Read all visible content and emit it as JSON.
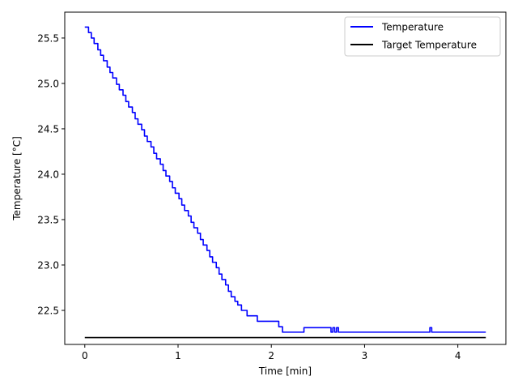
{
  "chart_data": {
    "type": "line",
    "title": "",
    "xlabel": "Time [min]",
    "ylabel": "Temperature [°C]",
    "xlim": [
      -0.215,
      4.515
    ],
    "ylim": [
      22.125,
      25.785
    ],
    "xticks": [
      0,
      1,
      2,
      3,
      4
    ],
    "xtick_labels": [
      "0",
      "1",
      "2",
      "3",
      "4"
    ],
    "yticks": [
      22.5,
      23.0,
      23.5,
      24.0,
      24.5,
      25.0,
      25.5
    ],
    "ytick_labels": [
      "22.5",
      "23.0",
      "23.5",
      "24.0",
      "24.5",
      "25.0",
      "25.5"
    ],
    "grid": false,
    "legend_position": "top-right",
    "series": [
      {
        "name": "Temperature",
        "color": "#0000ff",
        "step": true,
        "x": [
          0.0,
          0.04,
          0.07,
          0.1,
          0.14,
          0.17,
          0.2,
          0.24,
          0.27,
          0.3,
          0.34,
          0.37,
          0.41,
          0.44,
          0.47,
          0.51,
          0.54,
          0.57,
          0.61,
          0.64,
          0.67,
          0.71,
          0.74,
          0.77,
          0.81,
          0.84,
          0.87,
          0.91,
          0.94,
          0.97,
          1.01,
          1.04,
          1.07,
          1.11,
          1.14,
          1.17,
          1.21,
          1.24,
          1.27,
          1.31,
          1.34,
          1.37,
          1.41,
          1.44,
          1.47,
          1.51,
          1.54,
          1.57,
          1.61,
          1.64,
          1.68,
          1.74,
          1.78,
          1.85,
          1.95,
          2.08,
          2.1,
          2.12,
          2.35,
          2.64,
          2.66,
          2.68,
          2.7,
          2.72,
          2.74,
          2.75,
          3.7,
          3.72,
          3.73,
          4.3
        ],
        "y": [
          25.62,
          25.56,
          25.5,
          25.44,
          25.37,
          25.31,
          25.25,
          25.18,
          25.12,
          25.06,
          24.99,
          24.93,
          24.87,
          24.8,
          24.74,
          24.68,
          24.61,
          24.55,
          24.49,
          24.42,
          24.36,
          24.3,
          24.23,
          24.17,
          24.11,
          24.04,
          23.98,
          23.92,
          23.85,
          23.79,
          23.73,
          23.66,
          23.6,
          23.54,
          23.47,
          23.41,
          23.35,
          23.28,
          23.22,
          23.16,
          23.09,
          23.03,
          22.97,
          22.9,
          22.84,
          22.78,
          22.71,
          22.65,
          22.6,
          22.56,
          22.5,
          22.44,
          22.44,
          22.38,
          22.38,
          22.32,
          22.32,
          22.26,
          22.31,
          22.26,
          22.31,
          22.26,
          22.31,
          22.26,
          22.26,
          22.26,
          22.31,
          22.26,
          22.26,
          22.26
        ]
      },
      {
        "name": "Target Temperature",
        "color": "#000000",
        "step": false,
        "x": [
          0.0,
          4.3
        ],
        "y": [
          22.2,
          22.2
        ]
      }
    ]
  }
}
